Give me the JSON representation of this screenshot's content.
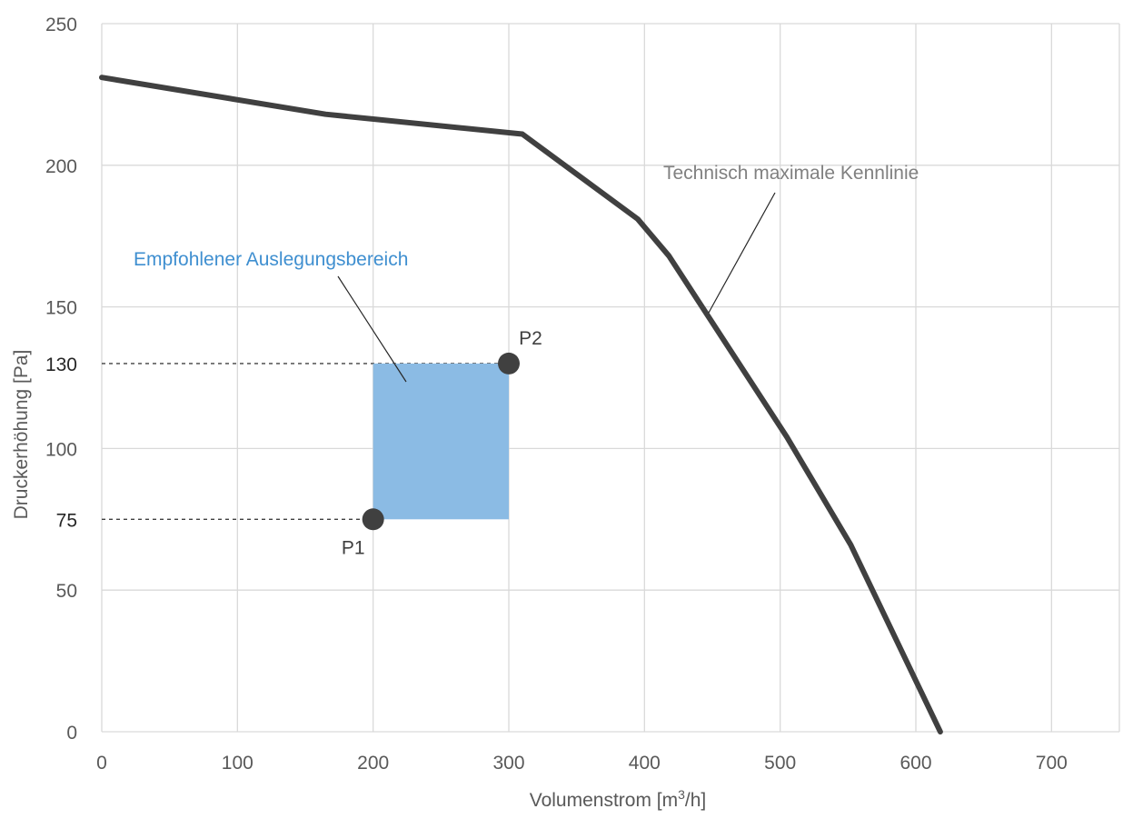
{
  "chart_data": {
    "type": "line",
    "title": "",
    "xlabel_prefix": "Volumenstrom [m",
    "xlabel_sup": "3",
    "xlabel_suffix": "/h]",
    "ylabel": "Druckerhöhung [Pa]",
    "xlim": [
      0,
      750
    ],
    "ylim": [
      0,
      250
    ],
    "x_ticks": [
      "0",
      "100",
      "200",
      "300",
      "400",
      "500",
      "600",
      "700"
    ],
    "y_ticks": [
      "0",
      "50",
      "75",
      "100",
      "130",
      "150",
      "200",
      "250"
    ],
    "y_ticks_highlighted": [
      "75",
      "130"
    ],
    "grid": true,
    "series": [
      {
        "name": "Technisch maximale Kennlinie",
        "color": "#404040",
        "points": [
          {
            "x": 0,
            "y": 231
          },
          {
            "x": 165,
            "y": 218
          },
          {
            "x": 310,
            "y": 211
          },
          {
            "x": 395,
            "y": 181
          },
          {
            "x": 418,
            "y": 168
          },
          {
            "x": 505,
            "y": 104
          },
          {
            "x": 552,
            "y": 66
          },
          {
            "x": 618,
            "y": 0
          }
        ]
      }
    ],
    "range_region": {
      "label": "Empfohlener Auslegungsbereich",
      "x": [
        200,
        300
      ],
      "y": [
        75,
        130
      ],
      "color": "#8bbbe4",
      "label_color": "#3f8fd0"
    },
    "points": [
      {
        "label": "P1",
        "x": 200,
        "y": 75
      },
      {
        "label": "P2",
        "x": 300,
        "y": 130
      }
    ],
    "point_color": "#404040",
    "guide_lines": [
      {
        "y": 130,
        "x_to": 300
      },
      {
        "y": 75,
        "x_to": 200
      }
    ],
    "annotations": [
      {
        "text": "Empfohlener Auslegungsbereich",
        "color": "#3f8fd0"
      },
      {
        "text": "Technisch maximale Kennlinie",
        "color": "#808080"
      }
    ]
  }
}
